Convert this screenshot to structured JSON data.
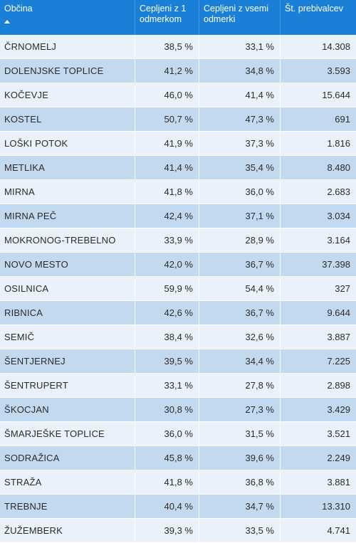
{
  "table": {
    "headers": [
      {
        "label": "Občina",
        "sorted": "ascending"
      },
      {
        "label": "Cepljeni z 1 odmerkom"
      },
      {
        "label": "Cepljeni z vsemi odmerki"
      },
      {
        "label": "Št. prebivalcev"
      }
    ],
    "rows": [
      {
        "name": "ČRNOMELJ",
        "one_dose": "38,5 %",
        "full": "33,1 %",
        "population": "14.308"
      },
      {
        "name": "DOLENJSKE TOPLICE",
        "one_dose": "41,2 %",
        "full": "34,8 %",
        "population": "3.593"
      },
      {
        "name": "KOČEVJE",
        "one_dose": "46,0 %",
        "full": "41,4 %",
        "population": "15.644"
      },
      {
        "name": "KOSTEL",
        "one_dose": "50,7 %",
        "full": "47,3 %",
        "population": "691"
      },
      {
        "name": "LOŠKI POTOK",
        "one_dose": "41,9 %",
        "full": "37,3 %",
        "population": "1.816"
      },
      {
        "name": "METLIKA",
        "one_dose": "41,4 %",
        "full": "35,4 %",
        "population": "8.480"
      },
      {
        "name": "MIRNA",
        "one_dose": "41,8 %",
        "full": "36,0 %",
        "population": "2.683"
      },
      {
        "name": "MIRNA PEČ",
        "one_dose": "42,4 %",
        "full": "37,1 %",
        "population": "3.034"
      },
      {
        "name": "MOKRONOG-TREBELNO",
        "one_dose": "33,9 %",
        "full": "28,9 %",
        "population": "3.164"
      },
      {
        "name": "NOVO MESTO",
        "one_dose": "42,0 %",
        "full": "36,7 %",
        "population": "37.398"
      },
      {
        "name": "OSILNICA",
        "one_dose": "59,9 %",
        "full": "54,4 %",
        "population": "327"
      },
      {
        "name": "RIBNICA",
        "one_dose": "42,6 %",
        "full": "36,7 %",
        "population": "9.644"
      },
      {
        "name": "SEMIČ",
        "one_dose": "38,4 %",
        "full": "32,6 %",
        "population": "3.887"
      },
      {
        "name": "ŠENTJERNEJ",
        "one_dose": "39,5 %",
        "full": "34,4 %",
        "population": "7.225"
      },
      {
        "name": "ŠENTRUPERT",
        "one_dose": "33,1 %",
        "full": "27,8 %",
        "population": "2.898"
      },
      {
        "name": "ŠKOCJAN",
        "one_dose": "30,8 %",
        "full": "27,3 %",
        "population": "3.429"
      },
      {
        "name": "ŠMARJEŠKE TOPLICE",
        "one_dose": "36,0 %",
        "full": "31,5 %",
        "population": "3.521"
      },
      {
        "name": "SODRAŽICA",
        "one_dose": "45,8 %",
        "full": "39,6 %",
        "population": "2.249"
      },
      {
        "name": "STRAŽA",
        "one_dose": "41,8 %",
        "full": "36,8 %",
        "population": "3.881"
      },
      {
        "name": "TREBNJE",
        "one_dose": "40,4 %",
        "full": "34,7 %",
        "population": "13.310"
      },
      {
        "name": "ŽUŽEMBERK",
        "one_dose": "39,3 %",
        "full": "33,5 %",
        "population": "4.741"
      }
    ]
  },
  "colors": {
    "header_bg": "#1a7fd6",
    "row_light": "#e9f1fa",
    "row_dark": "#c3d9f0"
  }
}
